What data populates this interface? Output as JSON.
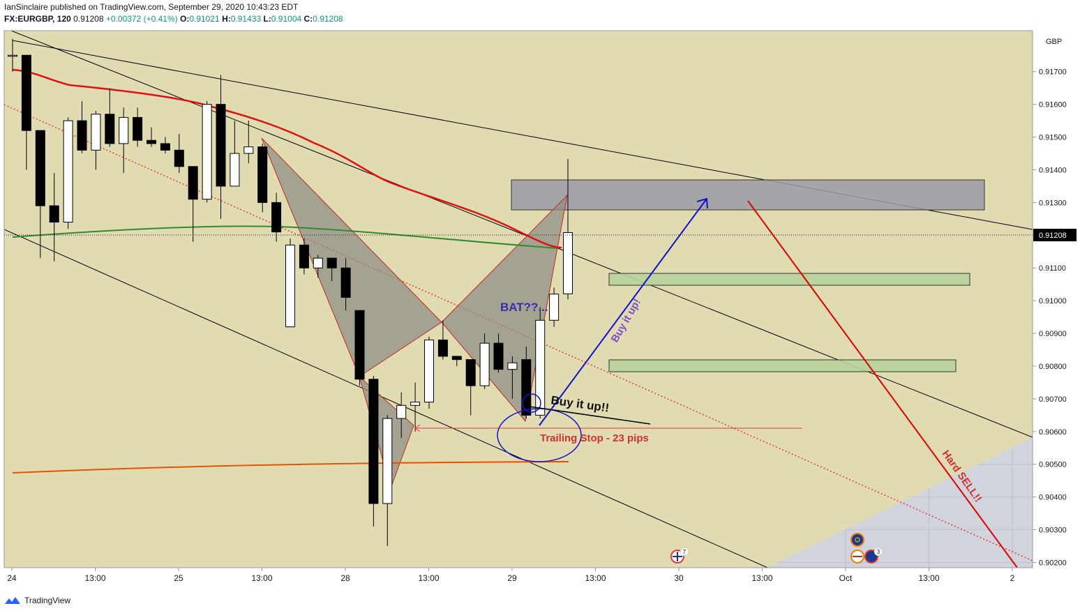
{
  "header": {
    "author": "IanSinclaire",
    "published_text": "published on TradingView.com, September 29, 2020 10:43:23 EDT",
    "symbol": "FX:EURGBP, 120",
    "last": "0.91208",
    "change": "+0.00372 (+0.41%)",
    "o_label": "O:",
    "o": "0.91021",
    "h_label": "H:",
    "h": "0.91433",
    "l_label": "L:",
    "l": "0.91004",
    "c_label": "C:",
    "c": "0.91208"
  },
  "footer": {
    "brand": "TradingView"
  },
  "chart_data": {
    "type": "candlestick",
    "currency": "GBP",
    "y_min": 0.902,
    "y_max": 0.918,
    "y_ticks": [
      "0.91700",
      "0.91600",
      "0.91500",
      "0.91400",
      "0.91300",
      "0.91100",
      "0.91000",
      "0.90900",
      "0.90800",
      "0.90700",
      "0.90600",
      "0.90500",
      "0.90400",
      "0.90300",
      "0.90200"
    ],
    "last_price_label": "0.91208",
    "x_ticks": [
      "24",
      "13:00",
      "25",
      "13:00",
      "28",
      "13:00",
      "29",
      "13:00",
      "30",
      "13:00",
      "Oct",
      "13:00",
      "2"
    ],
    "colors": {
      "bg": "#d1d4dc",
      "channel": "#e1dbb2",
      "up": "#ffffff",
      "down": "#000000",
      "ema_red": "#e20f0f",
      "ma_green": "#2e8b2e",
      "ma_orange": "#e65100",
      "pattern": "#8f8f86",
      "zone_top": "#9a9aa6",
      "zone_green": "#b8d19a",
      "arrow_blue": "#1111cc",
      "arrow_red": "#e00000",
      "text_purple": "#3a2ea8",
      "text_violet": "#7d4ec9",
      "text_red": "#d32f2f"
    },
    "candles": [
      {
        "o": 0.9175,
        "h": 0.918,
        "l": 0.917,
        "c": 0.9175
      },
      {
        "o": 0.9175,
        "h": 0.9175,
        "l": 0.914,
        "c": 0.9152
      },
      {
        "o": 0.9152,
        "h": 0.9152,
        "l": 0.9113,
        "c": 0.9129
      },
      {
        "o": 0.9129,
        "h": 0.9139,
        "l": 0.9112,
        "c": 0.9124
      },
      {
        "o": 0.9124,
        "h": 0.9156,
        "l": 0.9122,
        "c": 0.9155
      },
      {
        "o": 0.9155,
        "h": 0.9161,
        "l": 0.9145,
        "c": 0.9146
      },
      {
        "o": 0.9146,
        "h": 0.9158,
        "l": 0.914,
        "c": 0.9157
      },
      {
        "o": 0.9157,
        "h": 0.9165,
        "l": 0.9147,
        "c": 0.9148
      },
      {
        "o": 0.9148,
        "h": 0.9159,
        "l": 0.9139,
        "c": 0.9156
      },
      {
        "o": 0.9156,
        "h": 0.9159,
        "l": 0.9147,
        "c": 0.9149
      },
      {
        "o": 0.9149,
        "h": 0.9153,
        "l": 0.9147,
        "c": 0.9148
      },
      {
        "o": 0.9148,
        "h": 0.915,
        "l": 0.9145,
        "c": 0.9146
      },
      {
        "o": 0.9146,
        "h": 0.9151,
        "l": 0.9139,
        "c": 0.9141
      },
      {
        "o": 0.9141,
        "h": 0.9141,
        "l": 0.9118,
        "c": 0.9131
      },
      {
        "o": 0.9131,
        "h": 0.9161,
        "l": 0.913,
        "c": 0.916
      },
      {
        "o": 0.916,
        "h": 0.9169,
        "l": 0.9125,
        "c": 0.9135
      },
      {
        "o": 0.9135,
        "h": 0.9155,
        "l": 0.9135,
        "c": 0.9145
      },
      {
        "o": 0.9145,
        "h": 0.9155,
        "l": 0.9142,
        "c": 0.9147
      },
      {
        "o": 0.9147,
        "h": 0.9148,
        "l": 0.9127,
        "c": 0.913
      },
      {
        "o": 0.913,
        "h": 0.9133,
        "l": 0.9118,
        "c": 0.9121
      },
      {
        "o": 0.9092,
        "h": 0.9119,
        "l": 0.9092,
        "c": 0.9117
      },
      {
        "o": 0.9117,
        "h": 0.9119,
        "l": 0.9108,
        "c": 0.911
      },
      {
        "o": 0.911,
        "h": 0.9114,
        "l": 0.9107,
        "c": 0.9113
      },
      {
        "o": 0.9113,
        "h": 0.9113,
        "l": 0.9106,
        "c": 0.911
      },
      {
        "o": 0.911,
        "h": 0.9113,
        "l": 0.9097,
        "c": 0.9101
      },
      {
        "o": 0.9097,
        "h": 0.9097,
        "l": 0.9074,
        "c": 0.9076
      },
      {
        "o": 0.9076,
        "h": 0.9077,
        "l": 0.9031,
        "c": 0.9038
      },
      {
        "o": 0.9038,
        "h": 0.9065,
        "l": 0.9025,
        "c": 0.9064
      },
      {
        "o": 0.9064,
        "h": 0.9072,
        "l": 0.9058,
        "c": 0.9068
      },
      {
        "o": 0.9068,
        "h": 0.9075,
        "l": 0.906,
        "c": 0.9069
      },
      {
        "o": 0.9069,
        "h": 0.9089,
        "l": 0.9067,
        "c": 0.9088
      },
      {
        "o": 0.9088,
        "h": 0.9094,
        "l": 0.9082,
        "c": 0.9083
      },
      {
        "o": 0.9083,
        "h": 0.9083,
        "l": 0.908,
        "c": 0.9082
      },
      {
        "o": 0.9082,
        "h": 0.9082,
        "l": 0.9065,
        "c": 0.9074
      },
      {
        "o": 0.9074,
        "h": 0.909,
        "l": 0.9073,
        "c": 0.9087
      },
      {
        "o": 0.9087,
        "h": 0.909,
        "l": 0.9078,
        "c": 0.9079
      },
      {
        "o": 0.9079,
        "h": 0.9083,
        "l": 0.907,
        "c": 0.9081
      },
      {
        "o": 0.9082,
        "h": 0.9086,
        "l": 0.9064,
        "c": 0.9065
      },
      {
        "o": 0.9065,
        "h": 0.9098,
        "l": 0.9064,
        "c": 0.9094
      },
      {
        "o": 0.9094,
        "h": 0.9104,
        "l": 0.9092,
        "c": 0.9102
      },
      {
        "o": 0.91021,
        "h": 0.91433,
        "l": 0.91004,
        "c": 0.91208
      }
    ],
    "annotations": {
      "bat": "BAT??...",
      "buy_it_up_black": "Buy it up!!",
      "buy_it_up_violet": "Buy it up!",
      "trailing_stop": "Trailing Stop - 23 pips",
      "hard_sell": "Hard SELL!!"
    },
    "event_badges": [
      "7",
      "3"
    ]
  }
}
